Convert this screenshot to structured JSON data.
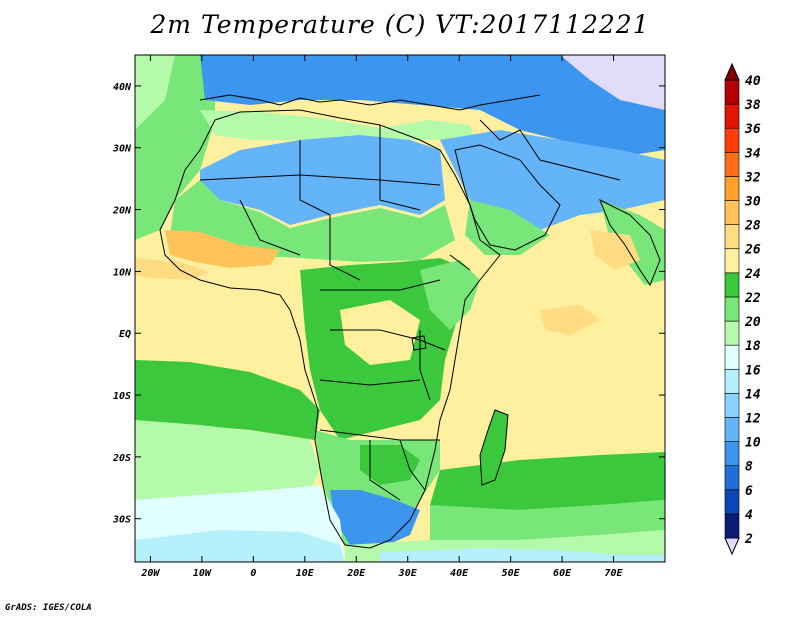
{
  "title": "2m Temperature (C) VT:2017112221",
  "credit": "GrADS: IGES/COLA",
  "map": {
    "lon_range": [
      -23,
      80
    ],
    "lat_range": [
      -37,
      45
    ],
    "x_ticks": [
      "20W",
      "10W",
      "0",
      "10E",
      "20E",
      "30E",
      "40E",
      "50E",
      "60E",
      "70E"
    ],
    "x_tick_values": [
      -20,
      -10,
      0,
      10,
      20,
      30,
      40,
      50,
      60,
      70
    ],
    "y_ticks": [
      "40N",
      "30N",
      "20N",
      "10N",
      "EQ",
      "10S",
      "20S",
      "30S"
    ],
    "y_tick_values": [
      40,
      30,
      20,
      10,
      0,
      -10,
      -20,
      -30
    ]
  },
  "colorbar": {
    "labels": [
      "2",
      "4",
      "6",
      "8",
      "10",
      "12",
      "14",
      "16",
      "18",
      "20",
      "22",
      "24",
      "26",
      "28",
      "30",
      "32",
      "34",
      "36",
      "38",
      "40"
    ],
    "colors": [
      "#e1dcfa",
      "#0a1e78",
      "#0a46b4",
      "#1e6edc",
      "#3c96f0",
      "#64b4fa",
      "#8cd2ff",
      "#b4f0fa",
      "#e1ffff",
      "#b4faaa",
      "#78e678",
      "#3cc83c",
      "#fff0a0",
      "#ffdc82",
      "#ffc35a",
      "#ffa028",
      "#ff6e14",
      "#ff3c0a",
      "#e11400",
      "#b40000",
      "#820000"
    ]
  }
}
